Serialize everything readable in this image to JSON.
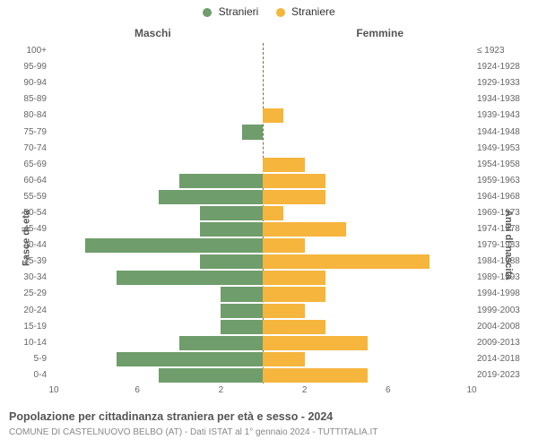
{
  "chart": {
    "type": "pyramid-bar",
    "legend": [
      {
        "label": "Stranieri",
        "color": "#6f9d6b"
      },
      {
        "label": "Straniere",
        "color": "#f6b53c"
      }
    ],
    "header_left": "Maschi",
    "header_right": "Femmine",
    "y_axis_left_title": "Fasce di età",
    "y_axis_right_title": "Anni di nascita",
    "x_max": 10,
    "x_ticks": [
      10,
      6,
      2,
      2,
      6,
      10
    ],
    "center_line_color": "#7a7045",
    "background_color": "#ffffff",
    "male_color": "#6f9d6b",
    "female_color": "#f6b53c",
    "label_fontsize": 10,
    "rows": [
      {
        "age": "100+",
        "birth": "≤ 1923",
        "m": 0,
        "f": 0
      },
      {
        "age": "95-99",
        "birth": "1924-1928",
        "m": 0,
        "f": 0
      },
      {
        "age": "90-94",
        "birth": "1929-1933",
        "m": 0,
        "f": 0
      },
      {
        "age": "85-89",
        "birth": "1934-1938",
        "m": 0,
        "f": 0
      },
      {
        "age": "80-84",
        "birth": "1939-1943",
        "m": 0,
        "f": 1.0
      },
      {
        "age": "75-79",
        "birth": "1944-1948",
        "m": 1.0,
        "f": 0
      },
      {
        "age": "70-74",
        "birth": "1949-1953",
        "m": 0,
        "f": 0
      },
      {
        "age": "65-69",
        "birth": "1954-1958",
        "m": 0,
        "f": 2.0
      },
      {
        "age": "60-64",
        "birth": "1959-1963",
        "m": 4.0,
        "f": 3.0
      },
      {
        "age": "55-59",
        "birth": "1964-1968",
        "m": 5.0,
        "f": 3.0
      },
      {
        "age": "50-54",
        "birth": "1969-1973",
        "m": 3.0,
        "f": 1.0
      },
      {
        "age": "45-49",
        "birth": "1974-1978",
        "m": 3.0,
        "f": 4.0
      },
      {
        "age": "40-44",
        "birth": "1979-1983",
        "m": 8.5,
        "f": 2.0
      },
      {
        "age": "35-39",
        "birth": "1984-1988",
        "m": 3.0,
        "f": 8.0
      },
      {
        "age": "30-34",
        "birth": "1989-1993",
        "m": 7.0,
        "f": 3.0
      },
      {
        "age": "25-29",
        "birth": "1994-1998",
        "m": 2.0,
        "f": 3.0
      },
      {
        "age": "20-24",
        "birth": "1999-2003",
        "m": 2.0,
        "f": 2.0
      },
      {
        "age": "15-19",
        "birth": "2004-2008",
        "m": 2.0,
        "f": 3.0
      },
      {
        "age": "10-14",
        "birth": "2009-2013",
        "m": 4.0,
        "f": 5.0
      },
      {
        "age": "5-9",
        "birth": "2014-2018",
        "m": 7.0,
        "f": 2.0
      },
      {
        "age": "0-4",
        "birth": "2019-2023",
        "m": 5.0,
        "f": 5.0
      }
    ]
  },
  "footer": {
    "title": "Popolazione per cittadinanza straniera per età e sesso - 2024",
    "sub": "COMUNE DI CASTELNUOVO BELBO (AT) - Dati ISTAT al 1° gennaio 2024 - TUTTITALIA.IT"
  }
}
